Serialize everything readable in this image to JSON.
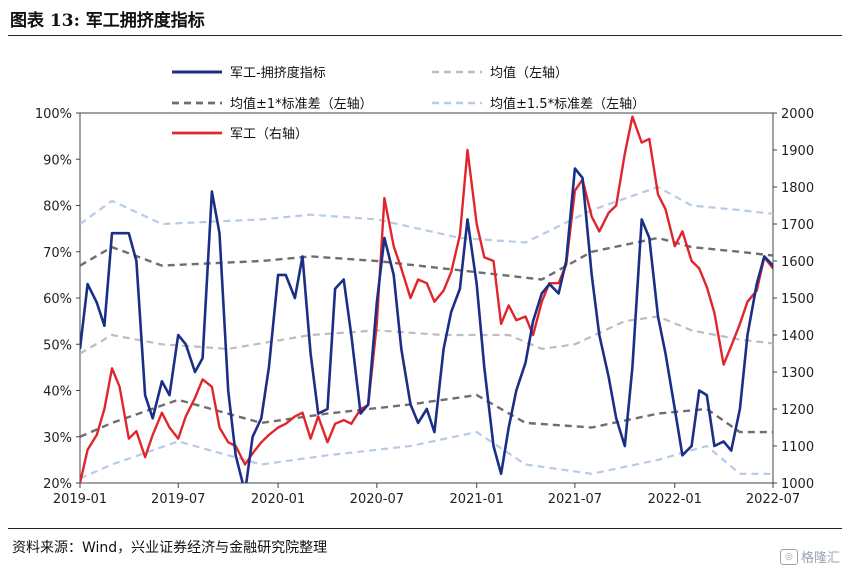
{
  "title": "图表 13:  军工拥挤度指标",
  "source": "资料来源：Wind，兴业证券经济与金融研究院整理",
  "watermark": "格隆汇",
  "colors": {
    "crowding": "#1c2f86",
    "mean": "#bdbdbd",
    "band1": "#6e6e6e",
    "band15": "#b8cbe6",
    "index": "#e0262d"
  },
  "chart_data": {
    "type": "line",
    "x_ticks": [
      "2019-01",
      "2019-07",
      "2020-01",
      "2020-07",
      "2021-01",
      "2021-07",
      "2022-01",
      "2022-07"
    ],
    "y_left": {
      "range": [
        0.2,
        1.0
      ],
      "ticks": [
        "20%",
        "30%",
        "40%",
        "50%",
        "60%",
        "70%",
        "80%",
        "90%",
        "100%"
      ]
    },
    "y_right": {
      "range": [
        1000,
        2000
      ],
      "ticks": [
        "1000",
        "1100",
        "1200",
        "1300",
        "1400",
        "1500",
        "1600",
        "1700",
        "1800",
        "1900",
        "2000"
      ]
    },
    "legend": [
      {
        "key": "crowding",
        "label": "军工-拥挤度指标"
      },
      {
        "key": "mean",
        "label": "均值（左轴）"
      },
      {
        "key": "band1",
        "label": "均值±1*标准差（左轴）"
      },
      {
        "key": "band15",
        "label": "均值±1.5*标准差（左轴）"
      },
      {
        "key": "index",
        "label": "军工（右轴）"
      }
    ],
    "series": [
      {
        "key": "crowding",
        "name": "军工-拥挤度指标",
        "axis": "left",
        "style": "solid",
        "points": [
          [
            "2019-01-01",
            0.49
          ],
          [
            "2019-01-15",
            0.63
          ],
          [
            "2019-02-01",
            0.59
          ],
          [
            "2019-02-15",
            0.54
          ],
          [
            "2019-03-01",
            0.74
          ],
          [
            "2019-03-15",
            0.74
          ],
          [
            "2019-04-01",
            0.74
          ],
          [
            "2019-04-15",
            0.68
          ],
          [
            "2019-05-01",
            0.39
          ],
          [
            "2019-05-15",
            0.34
          ],
          [
            "2019-06-01",
            0.42
          ],
          [
            "2019-06-15",
            0.39
          ],
          [
            "2019-07-01",
            0.52
          ],
          [
            "2019-07-15",
            0.5
          ],
          [
            "2019-08-01",
            0.44
          ],
          [
            "2019-08-15",
            0.47
          ],
          [
            "2019-09-01",
            0.83
          ],
          [
            "2019-09-15",
            0.74
          ],
          [
            "2019-10-01",
            0.4
          ],
          [
            "2019-10-15",
            0.26
          ],
          [
            "2019-11-01",
            0.18
          ],
          [
            "2019-11-15",
            0.3
          ],
          [
            "2019-12-01",
            0.34
          ],
          [
            "2019-12-15",
            0.45
          ],
          [
            "2020-01-01",
            0.65
          ],
          [
            "2020-01-15",
            0.65
          ],
          [
            "2020-02-01",
            0.6
          ],
          [
            "2020-02-15",
            0.69
          ],
          [
            "2020-03-01",
            0.48
          ],
          [
            "2020-03-15",
            0.35
          ],
          [
            "2020-04-01",
            0.36
          ],
          [
            "2020-04-15",
            0.62
          ],
          [
            "2020-05-01",
            0.64
          ],
          [
            "2020-05-15",
            0.52
          ],
          [
            "2020-06-01",
            0.35
          ],
          [
            "2020-06-15",
            0.37
          ],
          [
            "2020-07-01",
            0.59
          ],
          [
            "2020-07-15",
            0.73
          ],
          [
            "2020-08-01",
            0.65
          ],
          [
            "2020-08-15",
            0.49
          ],
          [
            "2020-09-01",
            0.37
          ],
          [
            "2020-09-15",
            0.33
          ],
          [
            "2020-10-01",
            0.36
          ],
          [
            "2020-10-15",
            0.31
          ],
          [
            "2020-11-01",
            0.49
          ],
          [
            "2020-11-15",
            0.57
          ],
          [
            "2020-12-01",
            0.62
          ],
          [
            "2020-12-15",
            0.77
          ],
          [
            "2021-01-01",
            0.63
          ],
          [
            "2021-01-15",
            0.45
          ],
          [
            "2021-02-01",
            0.28
          ],
          [
            "2021-02-15",
            0.22
          ],
          [
            "2021-03-01",
            0.32
          ],
          [
            "2021-03-15",
            0.4
          ],
          [
            "2021-04-01",
            0.46
          ],
          [
            "2021-04-15",
            0.55
          ],
          [
            "2021-05-01",
            0.61
          ],
          [
            "2021-05-15",
            0.63
          ],
          [
            "2021-06-01",
            0.61
          ],
          [
            "2021-06-15",
            0.68
          ],
          [
            "2021-07-01",
            0.88
          ],
          [
            "2021-07-15",
            0.86
          ],
          [
            "2021-08-01",
            0.65
          ],
          [
            "2021-08-15",
            0.52
          ],
          [
            "2021-09-01",
            0.43
          ],
          [
            "2021-09-15",
            0.34
          ],
          [
            "2021-10-01",
            0.28
          ],
          [
            "2021-10-15",
            0.45
          ],
          [
            "2021-11-01",
            0.77
          ],
          [
            "2021-11-15",
            0.73
          ],
          [
            "2021-12-01",
            0.56
          ],
          [
            "2021-12-15",
            0.48
          ],
          [
            "2022-01-01",
            0.36
          ],
          [
            "2022-01-15",
            0.26
          ],
          [
            "2022-02-01",
            0.28
          ],
          [
            "2022-02-15",
            0.4
          ],
          [
            "2022-03-01",
            0.39
          ],
          [
            "2022-03-15",
            0.28
          ],
          [
            "2022-04-01",
            0.29
          ],
          [
            "2022-04-15",
            0.27
          ],
          [
            "2022-05-01",
            0.36
          ],
          [
            "2022-05-15",
            0.52
          ],
          [
            "2022-06-01",
            0.63
          ],
          [
            "2022-06-15",
            0.69
          ],
          [
            "2022-07-01",
            0.67
          ],
          [
            "2022-07-15",
            0.62
          ]
        ]
      },
      {
        "key": "mean",
        "name": "均值（左轴）",
        "axis": "left",
        "style": "dashed",
        "points": [
          [
            "2019-01-01",
            0.48
          ],
          [
            "2019-03-01",
            0.52
          ],
          [
            "2019-06-01",
            0.5
          ],
          [
            "2019-10-01",
            0.49
          ],
          [
            "2020-03-01",
            0.52
          ],
          [
            "2020-07-01",
            0.53
          ],
          [
            "2020-11-01",
            0.52
          ],
          [
            "2021-03-01",
            0.52
          ],
          [
            "2021-05-01",
            0.49
          ],
          [
            "2021-07-01",
            0.5
          ],
          [
            "2021-10-01",
            0.55
          ],
          [
            "2021-12-01",
            0.56
          ],
          [
            "2022-02-01",
            0.53
          ],
          [
            "2022-05-01",
            0.51
          ],
          [
            "2022-07-15",
            0.5
          ]
        ]
      },
      {
        "key": "band1",
        "name": "均值±1*标准差（左轴）",
        "axis": "left",
        "style": "dashed",
        "points": [
          [
            "2019-01-01",
            0.67
          ],
          [
            "2019-03-01",
            0.71
          ],
          [
            "2019-06-01",
            0.67
          ],
          [
            "2019-12-01",
            0.68
          ],
          [
            "2020-03-01",
            0.69
          ],
          [
            "2020-07-01",
            0.68
          ],
          [
            "2020-12-01",
            0.66
          ],
          [
            "2021-05-01",
            0.64
          ],
          [
            "2021-08-01",
            0.7
          ],
          [
            "2021-12-01",
            0.73
          ],
          [
            "2022-02-01",
            0.71
          ],
          [
            "2022-05-01",
            0.7
          ],
          [
            "2022-07-15",
            0.69
          ]
        ]
      },
      {
        "key": "band1_lower",
        "name": "均值±1*标准差（左轴）",
        "axis": "left",
        "style": "dashed",
        "points": [
          [
            "2019-01-01",
            0.3
          ],
          [
            "2019-03-01",
            0.33
          ],
          [
            "2019-07-01",
            0.38
          ],
          [
            "2019-12-01",
            0.33
          ],
          [
            "2020-04-01",
            0.35
          ],
          [
            "2020-09-01",
            0.37
          ],
          [
            "2021-01-01",
            0.39
          ],
          [
            "2021-04-01",
            0.33
          ],
          [
            "2021-08-01",
            0.32
          ],
          [
            "2021-12-01",
            0.35
          ],
          [
            "2022-03-01",
            0.36
          ],
          [
            "2022-05-01",
            0.31
          ],
          [
            "2022-07-15",
            0.31
          ]
        ]
      },
      {
        "key": "band15",
        "name": "均值±1.5*标准差（左轴）",
        "axis": "left",
        "style": "dashed",
        "points": [
          [
            "2019-01-01",
            0.76
          ],
          [
            "2019-03-01",
            0.81
          ],
          [
            "2019-06-01",
            0.76
          ],
          [
            "2019-12-01",
            0.77
          ],
          [
            "2020-03-01",
            0.78
          ],
          [
            "2020-07-01",
            0.77
          ],
          [
            "2020-12-01",
            0.73
          ],
          [
            "2021-04-01",
            0.72
          ],
          [
            "2021-08-01",
            0.79
          ],
          [
            "2021-12-01",
            0.84
          ],
          [
            "2022-02-01",
            0.8
          ],
          [
            "2022-05-01",
            0.79
          ],
          [
            "2022-07-15",
            0.78
          ]
        ]
      },
      {
        "key": "band15_lower",
        "name": "均值±1.5*标准差（左轴）",
        "axis": "left",
        "style": "dashed",
        "points": [
          [
            "2019-01-01",
            0.21
          ],
          [
            "2019-03-01",
            0.24
          ],
          [
            "2019-07-01",
            0.29
          ],
          [
            "2019-12-01",
            0.24
          ],
          [
            "2020-04-01",
            0.26
          ],
          [
            "2020-09-01",
            0.28
          ],
          [
            "2021-01-01",
            0.31
          ],
          [
            "2021-04-01",
            0.24
          ],
          [
            "2021-08-01",
            0.22
          ],
          [
            "2021-12-01",
            0.25
          ],
          [
            "2022-03-01",
            0.28
          ],
          [
            "2022-05-01",
            0.22
          ],
          [
            "2022-07-15",
            0.22
          ]
        ]
      },
      {
        "key": "index",
        "name": "军工（右轴）",
        "axis": "right",
        "style": "solid",
        "points": [
          [
            "2019-01-01",
            1000
          ],
          [
            "2019-01-15",
            1090
          ],
          [
            "2019-02-01",
            1130
          ],
          [
            "2019-02-15",
            1200
          ],
          [
            "2019-03-01",
            1310
          ],
          [
            "2019-03-15",
            1260
          ],
          [
            "2019-04-01",
            1120
          ],
          [
            "2019-04-15",
            1140
          ],
          [
            "2019-05-01",
            1070
          ],
          [
            "2019-05-15",
            1130
          ],
          [
            "2019-06-01",
            1190
          ],
          [
            "2019-06-15",
            1150
          ],
          [
            "2019-07-01",
            1120
          ],
          [
            "2019-07-15",
            1180
          ],
          [
            "2019-08-01",
            1230
          ],
          [
            "2019-08-15",
            1280
          ],
          [
            "2019-09-01",
            1260
          ],
          [
            "2019-09-15",
            1150
          ],
          [
            "2019-10-01",
            1110
          ],
          [
            "2019-10-15",
            1100
          ],
          [
            "2019-11-01",
            1050
          ],
          [
            "2019-11-15",
            1080
          ],
          [
            "2019-12-01",
            1110
          ],
          [
            "2019-12-15",
            1130
          ],
          [
            "2020-01-01",
            1150
          ],
          [
            "2020-01-15",
            1160
          ],
          [
            "2020-02-01",
            1180
          ],
          [
            "2020-02-15",
            1190
          ],
          [
            "2020-03-01",
            1120
          ],
          [
            "2020-03-15",
            1180
          ],
          [
            "2020-04-01",
            1110
          ],
          [
            "2020-04-15",
            1160
          ],
          [
            "2020-05-01",
            1170
          ],
          [
            "2020-05-15",
            1160
          ],
          [
            "2020-06-01",
            1200
          ],
          [
            "2020-06-15",
            1210
          ],
          [
            "2020-07-01",
            1430
          ],
          [
            "2020-07-15",
            1770
          ],
          [
            "2020-08-01",
            1640
          ],
          [
            "2020-08-15",
            1580
          ],
          [
            "2020-09-01",
            1500
          ],
          [
            "2020-09-15",
            1550
          ],
          [
            "2020-10-01",
            1540
          ],
          [
            "2020-10-15",
            1490
          ],
          [
            "2020-11-01",
            1520
          ],
          [
            "2020-11-15",
            1570
          ],
          [
            "2020-12-01",
            1670
          ],
          [
            "2020-12-15",
            1900
          ],
          [
            "2021-01-01",
            1700
          ],
          [
            "2021-01-15",
            1610
          ],
          [
            "2021-02-01",
            1600
          ],
          [
            "2021-02-15",
            1430
          ],
          [
            "2021-03-01",
            1480
          ],
          [
            "2021-03-15",
            1440
          ],
          [
            "2021-04-01",
            1450
          ],
          [
            "2021-04-15",
            1400
          ],
          [
            "2021-05-01",
            1490
          ],
          [
            "2021-05-15",
            1540
          ],
          [
            "2021-06-01",
            1540
          ],
          [
            "2021-06-15",
            1590
          ],
          [
            "2021-07-01",
            1790
          ],
          [
            "2021-07-15",
            1820
          ],
          [
            "2021-08-01",
            1720
          ],
          [
            "2021-08-15",
            1680
          ],
          [
            "2021-09-01",
            1730
          ],
          [
            "2021-09-15",
            1750
          ],
          [
            "2021-10-01",
            1890
          ],
          [
            "2021-10-15",
            1990
          ],
          [
            "2021-11-01",
            1920
          ],
          [
            "2021-11-15",
            1930
          ],
          [
            "2021-12-01",
            1780
          ],
          [
            "2021-12-15",
            1740
          ],
          [
            "2022-01-01",
            1640
          ],
          [
            "2022-01-15",
            1680
          ],
          [
            "2022-02-01",
            1600
          ],
          [
            "2022-02-15",
            1580
          ],
          [
            "2022-03-01",
            1530
          ],
          [
            "2022-03-15",
            1460
          ],
          [
            "2022-04-01",
            1320
          ],
          [
            "2022-04-15",
            1370
          ],
          [
            "2022-05-01",
            1430
          ],
          [
            "2022-05-15",
            1490
          ],
          [
            "2022-06-01",
            1520
          ],
          [
            "2022-06-15",
            1610
          ],
          [
            "2022-07-01",
            1580
          ],
          [
            "2022-07-15",
            1600
          ]
        ]
      }
    ]
  }
}
